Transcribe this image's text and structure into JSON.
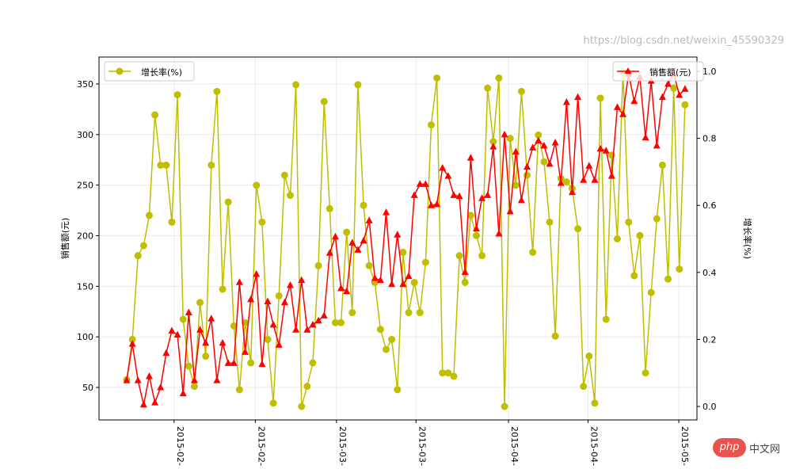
{
  "chart_data": {
    "type": "line",
    "title": "",
    "xlabel": "",
    "ylabel_left": "销售额(元)",
    "ylabel_right": "增长率(%)",
    "ylim_left": [
      15,
      378
    ],
    "ylim_right": [
      -0.04,
      1.0
    ],
    "yticks_left": [
      "50",
      "100",
      "150",
      "200",
      "250",
      "300",
      "350"
    ],
    "yticks_right": [
      "0.0",
      "0.2",
      "0.4",
      "0.6",
      "0.8",
      "1.0"
    ],
    "xticks": [
      {
        "pos": 8.4,
        "label": "2015-02-"
      },
      {
        "pos": 22.8,
        "label": "2015-02-"
      },
      {
        "pos": 37.2,
        "label": "2015-03-"
      },
      {
        "pos": 51.3,
        "label": "2015-03-"
      },
      {
        "pos": 67.7,
        "label": "2015-04-"
      },
      {
        "pos": 81.8,
        "label": "2015-04-"
      },
      {
        "pos": 97.9,
        "label": "2015-05-"
      }
    ],
    "grid": true,
    "series": [
      {
        "name": "销售额(元)",
        "axis": "left",
        "color": "#ff0000",
        "marker": "triangle",
        "legend": "top-right",
        "values": [
          57,
          93,
          57,
          33,
          61,
          35,
          50,
          84,
          106,
          102,
          44,
          124,
          57,
          107,
          94,
          118,
          57,
          94,
          74,
          74,
          154,
          85,
          137,
          162,
          73,
          135,
          112,
          92,
          134,
          151,
          107,
          156,
          107,
          112,
          116,
          121,
          183,
          199,
          148,
          145,
          193,
          186,
          195,
          215,
          158,
          156,
          223,
          152,
          201,
          152,
          160,
          240,
          251,
          251,
          230,
          231,
          267,
          259,
          240,
          239,
          164,
          277,
          207,
          237,
          240,
          288,
          202,
          300,
          224,
          283,
          235,
          268,
          287,
          294,
          289,
          271,
          292,
          252,
          332,
          243,
          337,
          255,
          269,
          255,
          286,
          284,
          259,
          327,
          320,
          360,
          333,
          357,
          297,
          353,
          289,
          337,
          350,
          360,
          339,
          345
        ]
      },
      {
        "name": "增长率(%)",
        "axis": "right",
        "color": "#bfbf00",
        "marker": "circle",
        "legend": "top-left",
        "values": [
          0.08,
          0.2,
          0.45,
          0.48,
          0.57,
          0.87,
          0.72,
          0.72,
          0.55,
          0.93,
          0.26,
          0.12,
          0.06,
          0.31,
          0.15,
          0.72,
          0.94,
          0.35,
          0.61,
          0.24,
          0.05,
          0.25,
          0.13,
          0.66,
          0.55,
          0.2,
          0.01,
          0.33,
          0.69,
          0.63,
          0.96,
          0.0,
          0.06,
          0.13,
          0.42,
          0.91,
          0.59,
          0.25,
          0.25,
          0.52,
          0.28,
          0.96,
          0.6,
          0.42,
          0.37,
          0.23,
          0.17,
          0.2,
          0.05,
          0.46,
          0.28,
          0.37,
          0.28,
          0.43,
          0.84,
          0.98,
          0.1,
          0.1,
          0.09,
          0.45,
          0.37,
          0.57,
          0.51,
          0.45,
          0.95,
          0.79,
          0.98,
          0.0,
          0.8,
          0.66,
          0.94,
          0.69,
          0.46,
          0.81,
          0.73,
          0.55,
          0.21,
          0.68,
          0.67,
          0.65,
          0.53,
          0.06,
          0.15,
          0.01,
          0.92,
          0.26,
          0.75,
          0.5,
          1.0,
          0.55,
          0.39,
          0.51,
          0.1,
          0.34,
          0.56,
          0.72,
          0.38,
          0.95,
          0.41,
          0.9
        ]
      }
    ]
  },
  "watermark": {
    "logo": "php",
    "site": "中文网",
    "url_text": "https://blog.csdn.net/weixin_45590329"
  }
}
